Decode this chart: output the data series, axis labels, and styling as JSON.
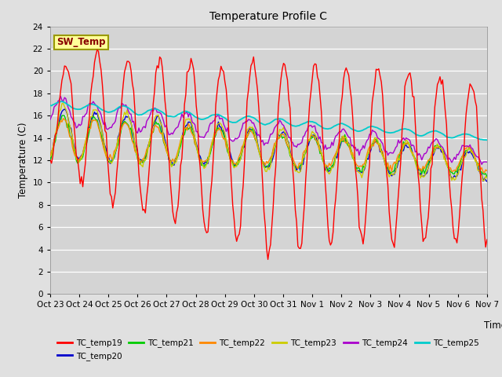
{
  "title": "Temperature Profile C",
  "xlabel": "Time",
  "ylabel": "Temperature (C)",
  "ylim": [
    0,
    24
  ],
  "yticks": [
    0,
    2,
    4,
    6,
    8,
    10,
    12,
    14,
    16,
    18,
    20,
    22,
    24
  ],
  "bg_color": "#e0e0e0",
  "plot_bg_color": "#d4d4d4",
  "series_colors": {
    "TC_temp19": "#ff0000",
    "TC_temp20": "#0000cc",
    "TC_temp21": "#00cc00",
    "TC_temp22": "#ff8800",
    "TC_temp23": "#cccc00",
    "TC_temp24": "#aa00cc",
    "TC_temp25": "#00cccc"
  },
  "sw_temp_box_color": "#ffff99",
  "sw_temp_border_color": "#999900",
  "sw_temp_text_color": "#880000",
  "xtick_labels": [
    "Oct 23",
    "Oct 24",
    "Oct 25",
    "Oct 26",
    "Oct 27",
    "Oct 28",
    "Oct 29",
    "Oct 30",
    "Oct 31",
    "Nov 1",
    "Nov 2",
    "Nov 3",
    "Nov 4",
    "Nov 5",
    "Nov 6",
    "Nov 7"
  ],
  "n_points": 336
}
